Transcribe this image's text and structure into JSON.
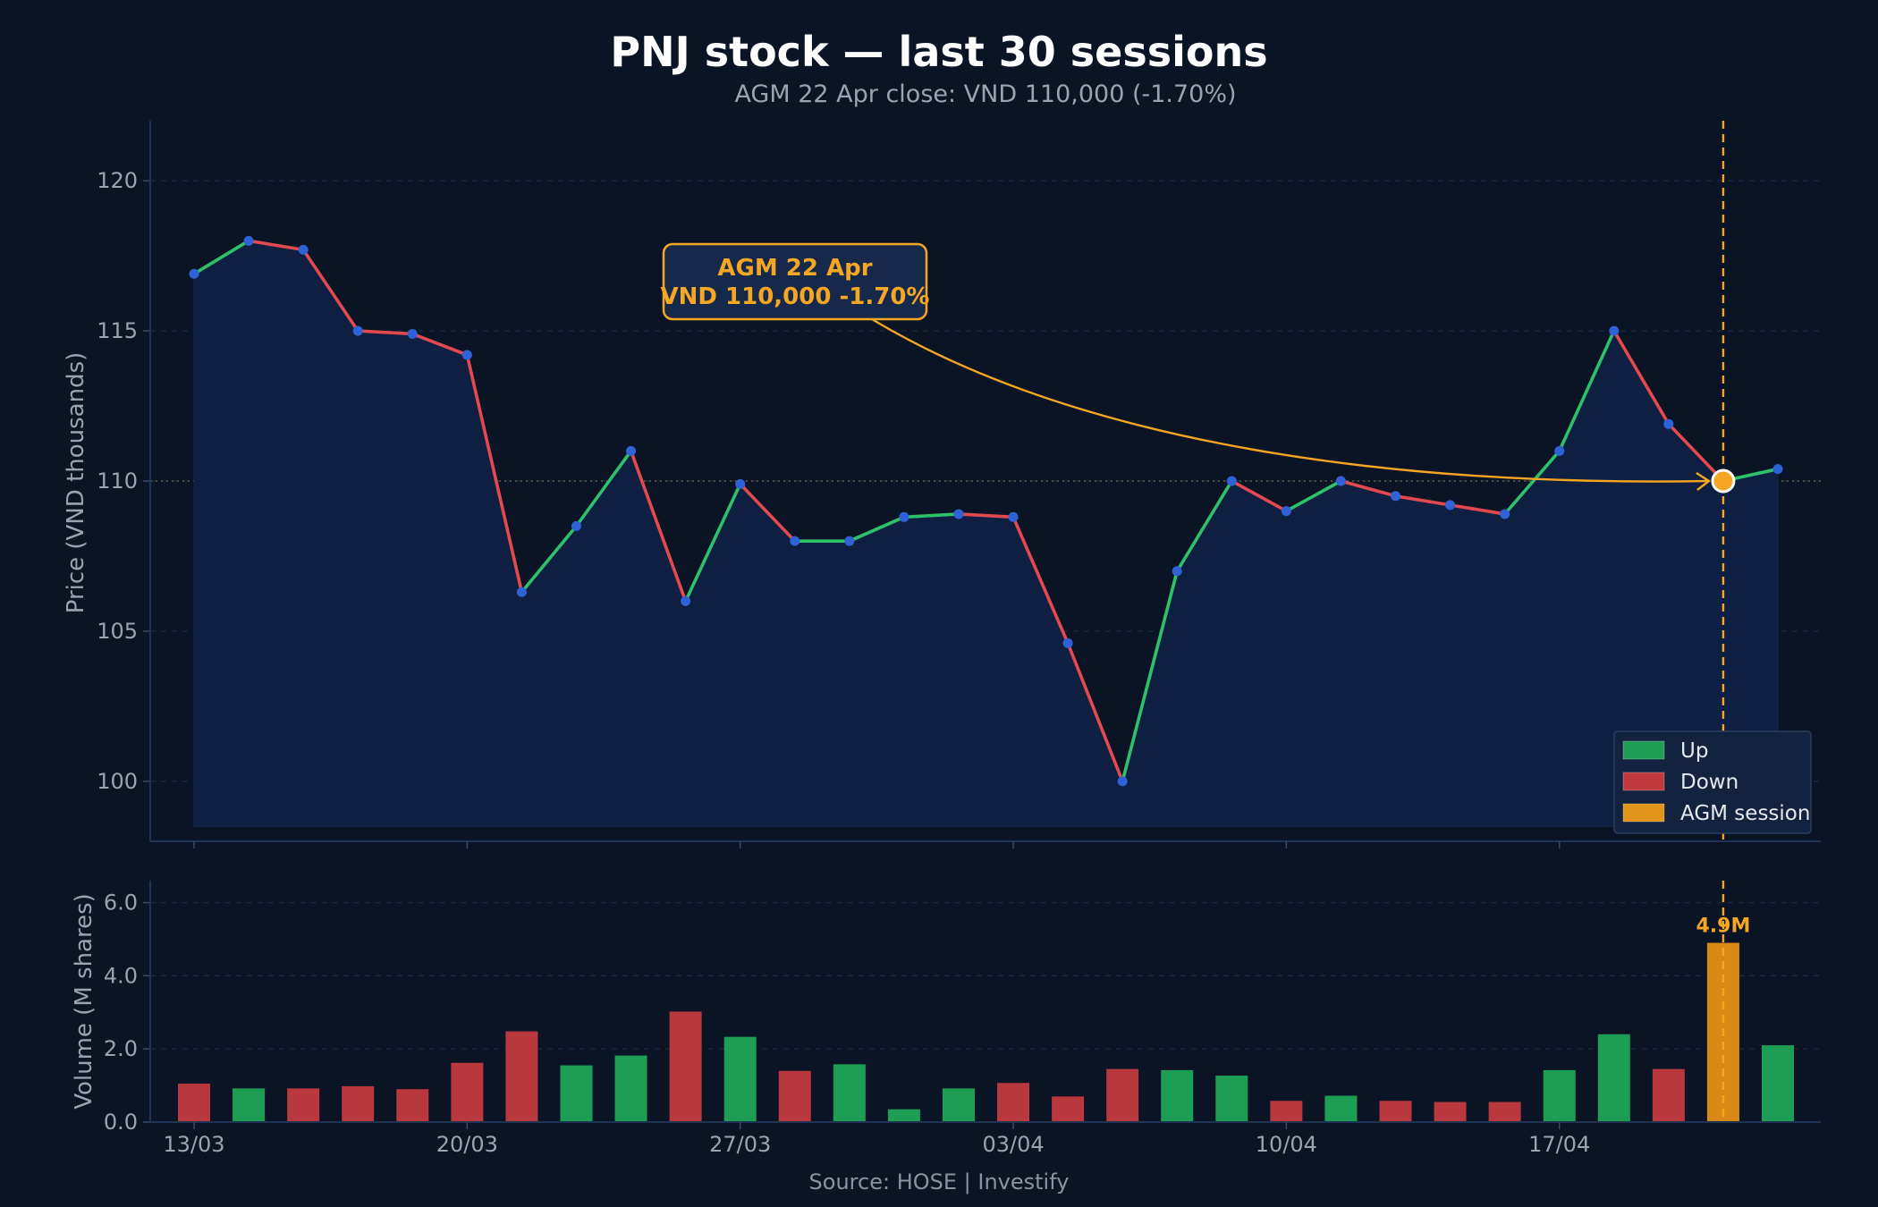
{
  "chart_data": {
    "type": "line",
    "title": "PNJ stock — last 30 sessions",
    "subtitle": "AGM 22 Apr close: VND 110,000 (-1.70%)",
    "ylabel": "Price (VND thousands)",
    "ylim": [
      98,
      122
    ],
    "yticks": [
      100,
      105,
      110,
      115,
      120
    ],
    "x_tick_labels": [
      "13/03",
      "20/03",
      "27/03",
      "03/04",
      "10/04",
      "17/04"
    ],
    "x_tick_session_index": [
      0,
      5,
      10,
      15,
      20,
      25
    ],
    "agm_session_index": 28,
    "price": [
      116.9,
      118.0,
      117.7,
      115.0,
      114.9,
      114.2,
      106.3,
      108.5,
      111.0,
      106.0,
      109.9,
      108.0,
      108.0,
      108.8,
      108.9,
      108.8,
      104.6,
      100.0,
      107.0,
      110.0,
      109.0,
      110.0,
      109.5,
      109.2,
      108.9,
      111.0,
      115.0,
      111.9,
      110.0,
      110.4
    ],
    "volume": {
      "ylabel": "Volume (M shares)",
      "ylim": [
        0,
        6.6
      ],
      "yticks": [
        "0.0",
        "2.0",
        "4.0",
        "6.0"
      ],
      "values": [
        1.05,
        0.92,
        0.92,
        0.98,
        0.9,
        1.62,
        2.48,
        1.55,
        1.82,
        3.02,
        2.33,
        1.4,
        1.58,
        0.35,
        0.92,
        1.07,
        0.7,
        1.45,
        1.42,
        1.27,
        0.58,
        0.72,
        0.58,
        0.55,
        0.55,
        1.42,
        2.4,
        1.45,
        4.9,
        2.1
      ],
      "direction": [
        "down",
        "up",
        "down",
        "down",
        "down",
        "down",
        "down",
        "up",
        "up",
        "down",
        "up",
        "down",
        "up",
        "up",
        "up",
        "down",
        "down",
        "down",
        "up",
        "up",
        "down",
        "up",
        "down",
        "down",
        "down",
        "up",
        "up",
        "down",
        "agm",
        "up"
      ],
      "agm_label": "4.9M"
    },
    "annotation": {
      "line1": "AGM 22 Apr",
      "line2": "VND 110,000  -1.70%"
    },
    "legend": {
      "position": "bottom-right",
      "items": [
        {
          "label": "Up",
          "color": "#1e9e55"
        },
        {
          "label": "Down",
          "color": "#c0393f"
        },
        {
          "label": "AGM session",
          "color": "#e0941a"
        }
      ]
    },
    "source": "Source: HOSE  |  Investify",
    "grid": true
  },
  "colors": {
    "background": "#0a1424",
    "up": "#2ec16a",
    "down": "#e24a4f",
    "up_bar": "#1e9e55",
    "down_bar": "#b8383d",
    "agm": "#f5a623",
    "marker": "#2f62d6",
    "area": "#0f1f42"
  }
}
